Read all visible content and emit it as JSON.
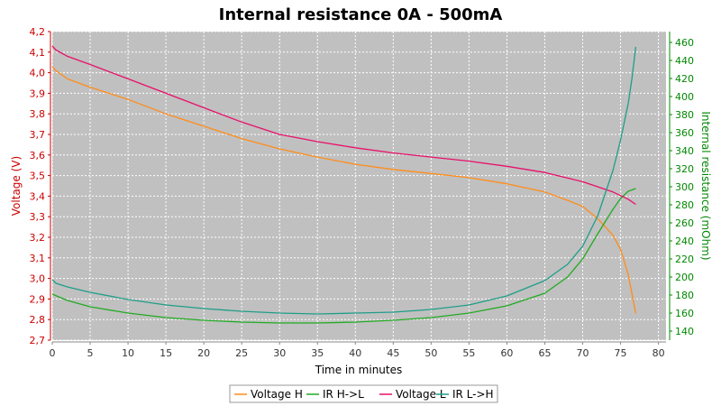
{
  "colors": {
    "plot_background": "#c0c0c0",
    "grid": "#ffffff",
    "left_axis": "#cc0000",
    "right_axis": "#008800",
    "x_axis": "#333333"
  },
  "chart_data": {
    "type": "line",
    "title": "Internal resistance  0A - 500mA",
    "xlabel": "Time in minutes",
    "ylabel_left": "Voltage (V)",
    "ylabel_right": "Internal resistance (mOhm)",
    "xlim": [
      0,
      81
    ],
    "ylim_left": [
      2.7,
      4.2
    ],
    "ylim_right": [
      130,
      472
    ],
    "x_ticks": [
      0,
      5,
      10,
      15,
      20,
      25,
      30,
      35,
      40,
      45,
      50,
      55,
      60,
      65,
      70,
      75,
      80
    ],
    "y_left_ticks": [
      "2,7",
      "2,8",
      "2,9",
      "3,0",
      "3,1",
      "3,2",
      "3,3",
      "3,4",
      "3,5",
      "3,6",
      "3,7",
      "3,8",
      "3,9",
      "4,0",
      "4,1",
      "4,2"
    ],
    "y_left_tick_values": [
      2.7,
      2.8,
      2.9,
      3.0,
      3.1,
      3.2,
      3.3,
      3.4,
      3.5,
      3.6,
      3.7,
      3.8,
      3.9,
      4.0,
      4.1,
      4.2
    ],
    "y_right_ticks": [
      140,
      160,
      180,
      200,
      220,
      240,
      260,
      280,
      300,
      320,
      340,
      360,
      380,
      400,
      420,
      440,
      460
    ],
    "grid": true,
    "legend_position": "bottom",
    "series": [
      {
        "name": "Voltage H",
        "axis": "left",
        "color": "#ff8c1a",
        "x": [
          0,
          0.5,
          2,
          5,
          10,
          15,
          20,
          25,
          30,
          35,
          40,
          45,
          50,
          55,
          60,
          65,
          68,
          70,
          72,
          74,
          75,
          76,
          77
        ],
        "y": [
          4.03,
          4.01,
          3.97,
          3.93,
          3.87,
          3.8,
          3.74,
          3.68,
          3.63,
          3.59,
          3.555,
          3.53,
          3.51,
          3.49,
          3.46,
          3.42,
          3.38,
          3.35,
          3.29,
          3.21,
          3.14,
          3.02,
          2.83
        ]
      },
      {
        "name": "IR H->L",
        "axis": "right",
        "color": "#22aa22",
        "x": [
          0,
          2,
          5,
          10,
          15,
          20,
          25,
          30,
          35,
          40,
          45,
          50,
          55,
          60,
          65,
          68,
          70,
          72,
          74,
          75,
          76,
          77
        ],
        "y": [
          181,
          174,
          167,
          160,
          155,
          152,
          150,
          149,
          149,
          150,
          152,
          155,
          160,
          168,
          182,
          200,
          220,
          248,
          275,
          287,
          295,
          298
        ]
      },
      {
        "name": "Voltage L",
        "axis": "left",
        "color": "#e8106a",
        "x": [
          0,
          0.5,
          2,
          5,
          10,
          15,
          20,
          25,
          30,
          35,
          40,
          45,
          50,
          55,
          60,
          65,
          70,
          74,
          76,
          77
        ],
        "y": [
          4.13,
          4.11,
          4.08,
          4.04,
          3.97,
          3.9,
          3.83,
          3.76,
          3.7,
          3.665,
          3.635,
          3.61,
          3.59,
          3.57,
          3.545,
          3.515,
          3.47,
          3.42,
          3.385,
          3.36
        ]
      },
      {
        "name": "IR L->H",
        "axis": "right",
        "color": "#1e9e88",
        "x": [
          0,
          0.5,
          2,
          5,
          10,
          15,
          20,
          25,
          30,
          35,
          40,
          45,
          50,
          55,
          60,
          65,
          68,
          70,
          72,
          74,
          75,
          76,
          76.5,
          77
        ],
        "y": [
          197,
          193,
          189,
          183,
          175,
          169,
          165,
          162,
          160,
          159,
          160,
          161,
          164,
          169,
          179,
          196,
          214,
          234,
          268,
          318,
          352,
          392,
          420,
          455
        ]
      }
    ]
  }
}
